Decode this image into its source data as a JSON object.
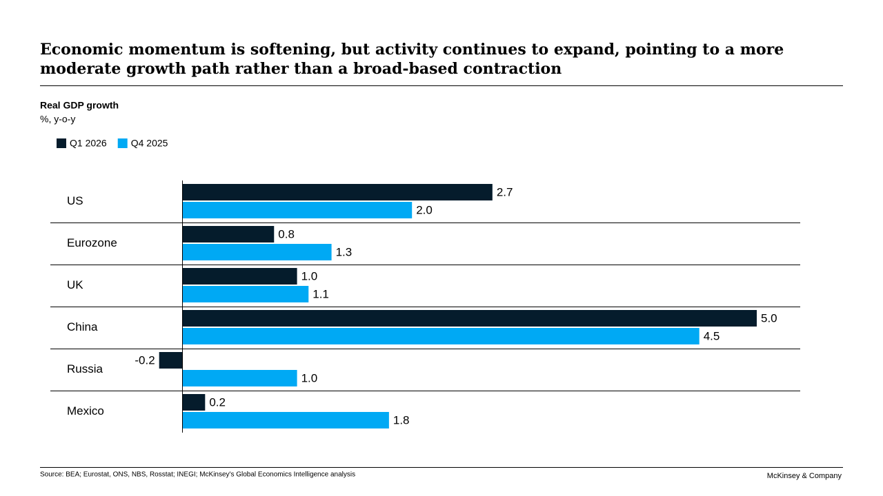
{
  "chart_data": {
    "type": "bar",
    "orientation": "horizontal",
    "title": "Economic momentum is softening, but activity continues to expand, pointing to a more moderate growth path rather than a broad-based contraction",
    "subtitle": "Real GDP growth",
    "unit": "%, y-o-y",
    "categories": [
      "US",
      "Eurozone",
      "UK",
      "China",
      "Russia",
      "Mexico"
    ],
    "series": [
      {
        "name": "Q1 2026",
        "color": "#051c2c",
        "values": [
          2.7,
          0.8,
          1.0,
          5.0,
          -0.2,
          0.2
        ],
        "value_labels": [
          "2.7",
          "0.8",
          "1.0",
          "5.0",
          "-0.2",
          "0.2"
        ]
      },
      {
        "name": "Q4 2025",
        "color": "#00a9f4",
        "values": [
          2.0,
          1.3,
          1.1,
          4.5,
          1.0,
          1.8
        ],
        "value_labels": [
          "2.0",
          "1.3",
          "1.1",
          "4.5",
          "1.0",
          "1.8"
        ]
      }
    ],
    "legend": "top-left"
  },
  "footer": {
    "source": "Source: BEA; Eurostat, ONS, NBS, Rosstat; INEGI; McKinsey's Global Economics Intelligence analysis",
    "brand": "McKinsey & Company"
  }
}
